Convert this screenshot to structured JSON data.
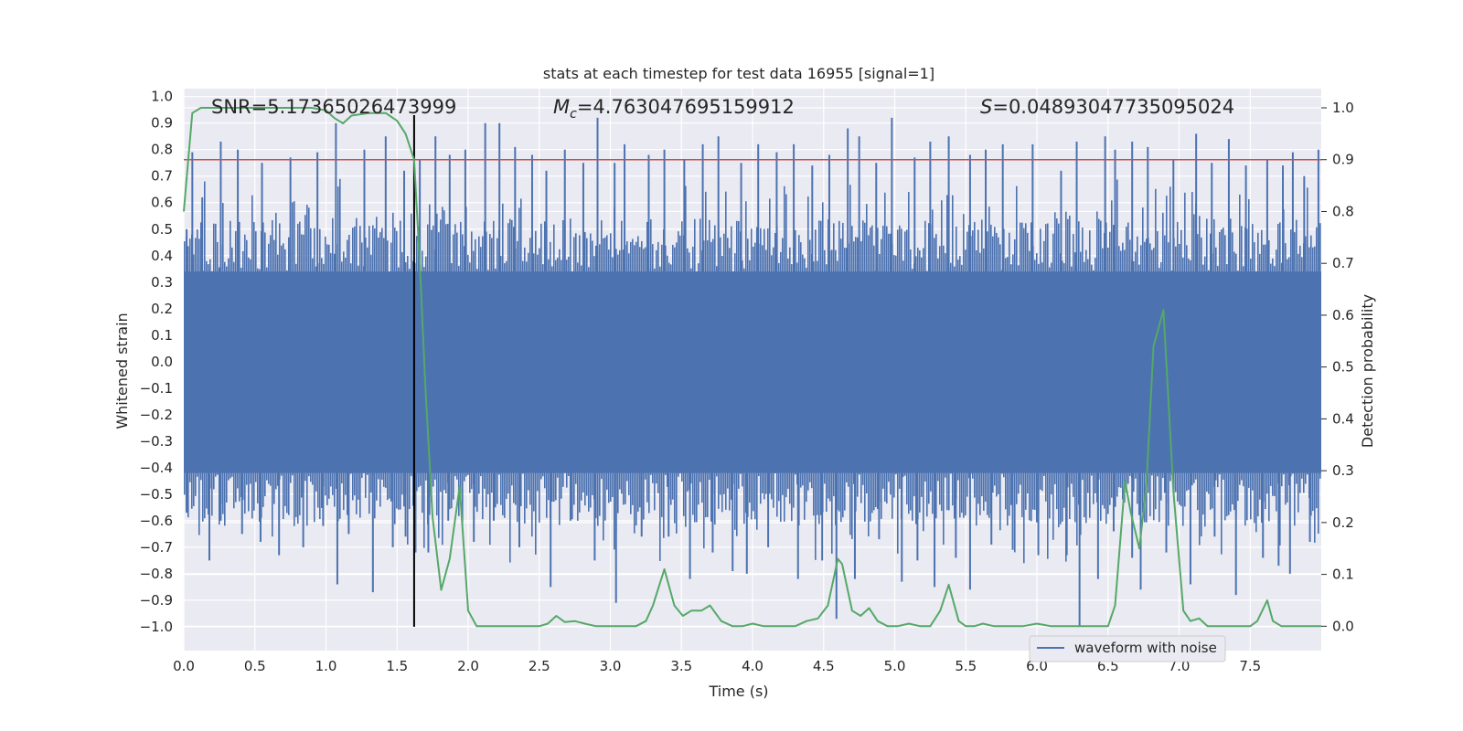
{
  "chart_data": {
    "type": "line",
    "title": "stats at each timestep for test data 16955 [signal=1]",
    "xlabel": "Time (s)",
    "ylabel": "Whitened strain",
    "y2label": "Detection probability",
    "xlim": [
      0.0,
      8.0
    ],
    "ylim": [
      -1.09,
      1.03
    ],
    "y2lim": [
      -0.047,
      1.037
    ],
    "xticks": [
      "0.0",
      "0.5",
      "1.0",
      "1.5",
      "2.0",
      "2.5",
      "3.0",
      "3.5",
      "4.0",
      "4.5",
      "5.0",
      "5.5",
      "6.0",
      "6.5",
      "7.0",
      "7.5"
    ],
    "yticks": [
      "1.0",
      "0.9",
      "0.8",
      "0.7",
      "0.6",
      "0.5",
      "0.4",
      "0.3",
      "0.2",
      "0.1",
      "0.0",
      "-0.1",
      "-0.2",
      "-0.3",
      "-0.4",
      "-0.5",
      "-0.6",
      "-0.7",
      "-0.8",
      "-0.9",
      "-1.0"
    ],
    "y2ticks": [
      "1.0",
      "0.9",
      "0.8",
      "0.7",
      "0.6",
      "0.5",
      "0.4",
      "0.3",
      "0.2",
      "0.1",
      "0.0"
    ],
    "grid": true,
    "legend": {
      "location": "lower right",
      "entries": [
        "waveform with noise"
      ]
    },
    "annotations": {
      "snr": "SNR=5.17365026473999",
      "mc_symbol": "M",
      "mc_sub": "c",
      "mc_value": "=4.763047695159912",
      "s_symbol": "S",
      "s_value": "=0.04893047735095024"
    },
    "series": [
      {
        "name": "waveform with noise",
        "kind": "noise-envelope",
        "color": "#4c72b0",
        "band_upper": 0.34,
        "band_lower": -0.42,
        "peak_spikes": [
          [
            0.02,
            0.5
          ],
          [
            0.06,
            0.79
          ],
          [
            0.13,
            0.62
          ],
          [
            0.26,
            0.83
          ],
          [
            0.38,
            0.8
          ],
          [
            0.55,
            0.75
          ],
          [
            0.75,
            0.77
          ],
          [
            0.94,
            0.79
          ],
          [
            1.07,
            0.9
          ],
          [
            1.27,
            0.8
          ],
          [
            1.42,
            0.85
          ],
          [
            1.55,
            0.72
          ],
          [
            1.66,
            0.76
          ],
          [
            1.77,
            0.85
          ],
          [
            1.87,
            0.78
          ],
          [
            1.98,
            0.8
          ],
          [
            2.12,
            0.9
          ],
          [
            2.22,
            0.9
          ],
          [
            2.33,
            0.81
          ],
          [
            2.45,
            0.78
          ],
          [
            2.55,
            0.72
          ],
          [
            2.68,
            0.8
          ],
          [
            2.81,
            0.75
          ],
          [
            2.91,
            0.92
          ],
          [
            3.03,
            0.75
          ],
          [
            3.1,
            0.82
          ],
          [
            3.27,
            0.78
          ],
          [
            3.38,
            0.8
          ],
          [
            3.52,
            0.76
          ],
          [
            3.65,
            0.82
          ],
          [
            3.76,
            0.85
          ],
          [
            3.92,
            0.75
          ],
          [
            4.04,
            0.82
          ],
          [
            4.17,
            0.79
          ],
          [
            4.29,
            0.82
          ],
          [
            4.42,
            0.74
          ],
          [
            4.54,
            0.78
          ],
          [
            4.67,
            0.88
          ],
          [
            4.75,
            0.85
          ],
          [
            4.87,
            0.75
          ],
          [
            4.98,
            0.92
          ],
          [
            5.14,
            0.77
          ],
          [
            5.25,
            0.83
          ],
          [
            5.38,
            0.85
          ],
          [
            5.53,
            0.78
          ],
          [
            5.64,
            0.8
          ],
          [
            5.76,
            0.82
          ],
          [
            5.97,
            0.82
          ],
          [
            6.17,
            0.72
          ],
          [
            6.28,
            0.83
          ],
          [
            6.48,
            0.85
          ],
          [
            6.55,
            0.8
          ],
          [
            6.67,
            0.83
          ],
          [
            6.78,
            0.81
          ],
          [
            6.96,
            0.76
          ],
          [
            7.12,
            0.86
          ],
          [
            7.23,
            0.75
          ],
          [
            7.35,
            0.84
          ],
          [
            7.47,
            0.74
          ],
          [
            7.62,
            0.76
          ],
          [
            7.73,
            0.74
          ],
          [
            7.8,
            0.79
          ],
          [
            7.88,
            0.7
          ],
          [
            7.98,
            0.8
          ]
        ],
        "trough_spikes": [
          [
            0.02,
            -0.57
          ],
          [
            0.18,
            -0.75
          ],
          [
            0.26,
            -0.6
          ],
          [
            0.41,
            -0.65
          ],
          [
            0.54,
            -0.68
          ],
          [
            0.67,
            -0.73
          ],
          [
            0.84,
            -0.7
          ],
          [
            0.98,
            -0.62
          ],
          [
            1.08,
            -0.84
          ],
          [
            1.16,
            -0.65
          ],
          [
            1.33,
            -0.87
          ],
          [
            1.47,
            -0.7
          ],
          [
            1.56,
            -0.66
          ],
          [
            1.63,
            -0.72
          ],
          [
            1.72,
            -0.72
          ],
          [
            1.86,
            -0.6
          ],
          [
            2.04,
            -0.68
          ],
          [
            2.18,
            -0.6
          ],
          [
            2.36,
            -0.7
          ],
          [
            2.58,
            -0.85
          ],
          [
            2.72,
            -0.6
          ],
          [
            2.89,
            -0.75
          ],
          [
            3.04,
            -0.91
          ],
          [
            3.22,
            -0.66
          ],
          [
            3.41,
            -0.66
          ],
          [
            3.56,
            -0.82
          ],
          [
            3.72,
            -0.72
          ],
          [
            3.86,
            -0.79
          ],
          [
            3.96,
            -0.8
          ],
          [
            4.11,
            -0.7
          ],
          [
            4.32,
            -0.82
          ],
          [
            4.49,
            -0.75
          ],
          [
            4.59,
            -0.97
          ],
          [
            4.72,
            -0.82
          ],
          [
            4.89,
            -0.67
          ],
          [
            5.05,
            -0.83
          ],
          [
            5.16,
            -0.75
          ],
          [
            5.28,
            -0.85
          ],
          [
            5.43,
            -0.74
          ],
          [
            5.53,
            -0.86
          ],
          [
            5.68,
            -0.69
          ],
          [
            5.83,
            -0.71
          ],
          [
            6.01,
            -0.73
          ],
          [
            6.21,
            -0.73
          ],
          [
            6.3,
            -1.0
          ],
          [
            6.43,
            -0.82
          ],
          [
            6.54,
            -0.64
          ],
          [
            6.67,
            -0.74
          ],
          [
            6.73,
            -0.86
          ],
          [
            6.91,
            -0.72
          ],
          [
            7.08,
            -0.84
          ],
          [
            7.25,
            -0.66
          ],
          [
            7.4,
            -0.88
          ],
          [
            7.59,
            -0.74
          ],
          [
            7.7,
            -0.77
          ],
          [
            7.78,
            -0.8
          ],
          [
            7.92,
            -0.68
          ]
        ]
      },
      {
        "name": "",
        "kind": "probability",
        "axis": "right",
        "color": "#55a868",
        "x": [
          0.0,
          0.06,
          0.12,
          0.2,
          0.3,
          0.5,
          0.7,
          0.9,
          1.0,
          1.06,
          1.12,
          1.18,
          1.3,
          1.42,
          1.5,
          1.56,
          1.62,
          1.66,
          1.7,
          1.75,
          1.81,
          1.87,
          1.94,
          2.0,
          2.06,
          2.12,
          2.2,
          2.3,
          2.4,
          2.5,
          2.56,
          2.62,
          2.68,
          2.75,
          2.82,
          2.9,
          3.0,
          3.1,
          3.18,
          3.25,
          3.3,
          3.38,
          3.45,
          3.51,
          3.57,
          3.64,
          3.7,
          3.78,
          3.86,
          3.93,
          4.0,
          4.08,
          4.16,
          4.23,
          4.3,
          4.38,
          4.46,
          4.53,
          4.6,
          4.63,
          4.7,
          4.76,
          4.82,
          4.88,
          4.95,
          5.02,
          5.1,
          5.18,
          5.25,
          5.32,
          5.38,
          5.45,
          5.5,
          5.56,
          5.62,
          5.7,
          5.8,
          5.9,
          6.0,
          6.1,
          6.2,
          6.3,
          6.4,
          6.5,
          6.55,
          6.62,
          6.66,
          6.72,
          6.77,
          6.82,
          6.89,
          6.96,
          7.03,
          7.08,
          7.14,
          7.2,
          7.3,
          7.4,
          7.5,
          7.55,
          7.62,
          7.66,
          7.72,
          7.8,
          7.9,
          8.0
        ],
        "y": [
          0.8,
          0.99,
          1.0,
          1.0,
          1.0,
          1.0,
          1.0,
          1.0,
          0.995,
          0.98,
          0.97,
          0.985,
          0.99,
          0.99,
          0.975,
          0.95,
          0.9,
          0.7,
          0.46,
          0.21,
          0.07,
          0.13,
          0.27,
          0.03,
          0.0,
          0.0,
          0.0,
          0.0,
          0.0,
          0.0,
          0.005,
          0.02,
          0.008,
          0.01,
          0.005,
          0.0,
          0.0,
          0.0,
          0.0,
          0.01,
          0.04,
          0.11,
          0.04,
          0.02,
          0.03,
          0.03,
          0.04,
          0.01,
          0.0,
          0.0,
          0.005,
          0.0,
          0.0,
          0.0,
          0.0,
          0.01,
          0.015,
          0.04,
          0.13,
          0.12,
          0.03,
          0.02,
          0.035,
          0.01,
          0.0,
          0.0,
          0.005,
          0.0,
          0.0,
          0.03,
          0.08,
          0.01,
          0.0,
          0.0,
          0.005,
          0.0,
          0.0,
          0.0,
          0.005,
          0.0,
          0.0,
          0.0,
          0.0,
          0.0,
          0.04,
          0.28,
          0.22,
          0.15,
          0.27,
          0.54,
          0.61,
          0.26,
          0.03,
          0.01,
          0.015,
          0.0,
          0.0,
          0.0,
          0.0,
          0.01,
          0.05,
          0.01,
          0.0,
          0.0,
          0.0,
          0.0
        ]
      }
    ],
    "threshold_line": {
      "axis": "right",
      "y": 0.9,
      "color": "#c44e52"
    },
    "marker_line": {
      "x": 1.62,
      "y_from": -1.0,
      "y_to": 0.93,
      "color": "#000000"
    }
  }
}
